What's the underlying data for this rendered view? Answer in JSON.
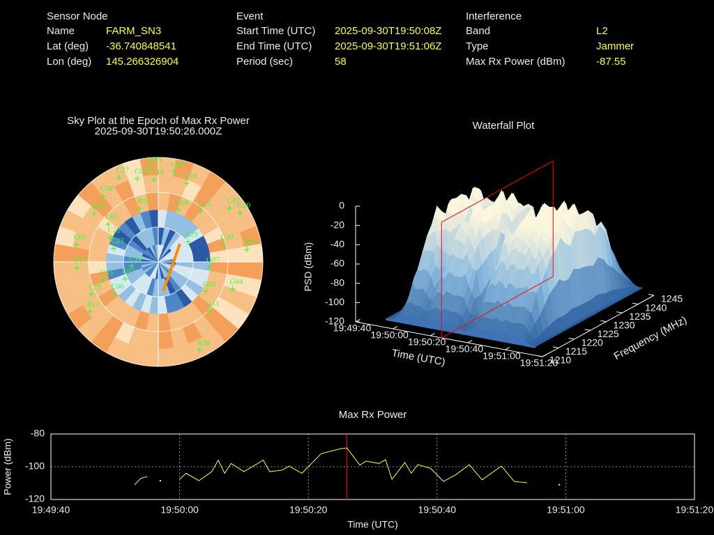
{
  "header": {
    "sections": [
      {
        "title": "Sensor Node",
        "rows": [
          {
            "key": "Name",
            "value": "FARM_SN3"
          },
          {
            "key": "Lat (deg)",
            "value": "-36.740848541"
          },
          {
            "key": "Lon (deg)",
            "value": "145.266326904"
          }
        ]
      },
      {
        "title": "Event",
        "rows": [
          {
            "key": "Start Time (UTC)",
            "value": "2025-09-30T19:50:08Z"
          },
          {
            "key": "End Time (UTC)",
            "value": "2025-09-30T19:51:06Z"
          },
          {
            "key": "Period (sec)",
            "value": "58"
          }
        ]
      },
      {
        "title": "Interference",
        "rows": [
          {
            "key": "Band",
            "value": "L2"
          },
          {
            "key": "Type",
            "value": "Jammer"
          },
          {
            "key": "Max Rx Power (dBm)",
            "value": "-87.55"
          }
        ]
      }
    ]
  },
  "chart_data": [
    {
      "type": "polar-scatter",
      "title": "Sky Plot at the Epoch of Max Rx Power",
      "subtitle": "2025-09-30T19:50:26.000Z",
      "color": "#33ff33",
      "satellites": [
        {
          "name": "J105",
          "az": 355,
          "el": 8
        },
        {
          "name": "C27",
          "az": 335,
          "el": 10
        },
        {
          "name": "C09",
          "az": 346,
          "el": 16
        },
        {
          "name": "C19",
          "az": 357,
          "el": 19
        },
        {
          "name": "G09",
          "az": 10,
          "el": 11
        },
        {
          "name": "C59",
          "az": 20,
          "el": 18
        },
        {
          "name": "C38",
          "az": 320,
          "el": 16
        },
        {
          "name": "G18",
          "az": 307,
          "el": 21
        },
        {
          "name": "R01",
          "az": 341,
          "el": 41
        },
        {
          "name": "G08",
          "az": 21,
          "el": 42
        },
        {
          "name": "G15",
          "az": 40,
          "el": 33
        },
        {
          "name": "C47",
          "az": 53,
          "el": 13
        },
        {
          "name": "G20",
          "az": 59,
          "el": 8
        },
        {
          "name": "C03",
          "az": 307,
          "el": 36
        },
        {
          "name": "C22",
          "az": 297,
          "el": 44
        },
        {
          "name": "C02",
          "az": 282,
          "el": 18
        },
        {
          "name": "E29",
          "az": 56,
          "el": 59
        },
        {
          "name": "C30",
          "az": 75,
          "el": 32
        },
        {
          "name": "R15",
          "az": 82,
          "el": 13
        },
        {
          "name": "C23",
          "az": 287,
          "el": 50
        },
        {
          "name": "E13",
          "az": 266,
          "el": 20
        },
        {
          "name": "C14",
          "az": 261,
          "el": 67
        },
        {
          "name": "G07",
          "az": 96,
          "el": 46
        },
        {
          "name": "C45",
          "az": 252,
          "el": 40
        },
        {
          "name": "G05",
          "az": 122,
          "el": 42
        },
        {
          "name": "C29",
          "az": 244,
          "el": 26
        },
        {
          "name": "G11",
          "az": 134,
          "el": 29
        },
        {
          "name": "R11",
          "az": 234,
          "el": 17
        },
        {
          "name": "R26",
          "az": 155,
          "el": 6
        },
        {
          "name": "C06",
          "az": 234,
          "el": 43
        },
        {
          "name": "E07",
          "az": 243,
          "el": 58
        },
        {
          "name": "G04",
          "az": 110,
          "el": 22
        }
      ]
    },
    {
      "type": "waterfall",
      "title": "Waterfall Plot",
      "xlabel": "Time (UTC)",
      "ylabel": "Frequency (MHz)",
      "zlabel": "PSD (dBm)",
      "xlim": [
        "19:49:40",
        "19:51:20"
      ],
      "xticks": [
        "19:49:40",
        "19:50:00",
        "19:50:20",
        "19:50:40",
        "19:51:00",
        "19:51:20"
      ],
      "ylim": [
        1210,
        1245
      ],
      "yticks": [
        1210,
        1215,
        1220,
        1225,
        1230,
        1235,
        1240,
        1245
      ],
      "zlim": [
        -120,
        0
      ],
      "zticks": [
        -120,
        -100,
        -80,
        -60,
        -40,
        -20,
        0
      ],
      "marker_x": "19:50:26",
      "marker_color": "#ff0000"
    },
    {
      "type": "line",
      "title": "Max Rx Power",
      "xlabel": "Time (UTC)",
      "ylabel": "Power (dBm)",
      "color": "#ffff33",
      "x": [
        "19:49:53",
        "19:49:54",
        "19:49:55",
        "19:49:56",
        "19:49:57",
        "19:49:58",
        "19:50:00",
        "19:50:01",
        "19:50:03",
        "19:50:05",
        "19:50:06",
        "19:50:07",
        "19:50:08",
        "19:50:10",
        "19:50:13",
        "19:50:14",
        "19:50:16",
        "19:50:17",
        "19:50:19",
        "19:50:22",
        "19:50:25",
        "19:50:26",
        "19:50:28",
        "19:50:29",
        "19:50:31",
        "19:50:32",
        "19:50:33",
        "19:50:35",
        "19:50:36",
        "19:50:37",
        "19:50:39",
        "19:50:41",
        "19:50:43",
        "19:50:45",
        "19:50:47",
        "19:50:50",
        "19:50:52",
        "19:50:54",
        "19:50:56",
        "19:50:59"
      ],
      "values": [
        -111,
        -107,
        -106,
        null,
        -108.5,
        null,
        -107.7,
        -104,
        -108.5,
        -103,
        -96,
        -104,
        -98,
        -103,
        -96,
        -103,
        -102,
        -99.6,
        -104,
        -92,
        -89,
        -88.5,
        -99,
        -96.6,
        -98,
        -95.7,
        -107.7,
        -97.4,
        -104,
        -98.7,
        -101,
        -109,
        -104.7,
        -98.7,
        -108,
        -99.6,
        -109,
        -109.8,
        null,
        -111
      ],
      "xlim": [
        "19:49:40",
        "19:51:20"
      ],
      "xticks": [
        "19:49:40",
        "19:50:00",
        "19:50:20",
        "19:50:40",
        "19:51:00",
        "19:51:20"
      ],
      "ylim": [
        -120,
        -80
      ],
      "yticks": [
        -120,
        -100,
        -80
      ],
      "grid": true,
      "marker_x": "19:50:26",
      "marker_color": "#ff0000"
    }
  ]
}
